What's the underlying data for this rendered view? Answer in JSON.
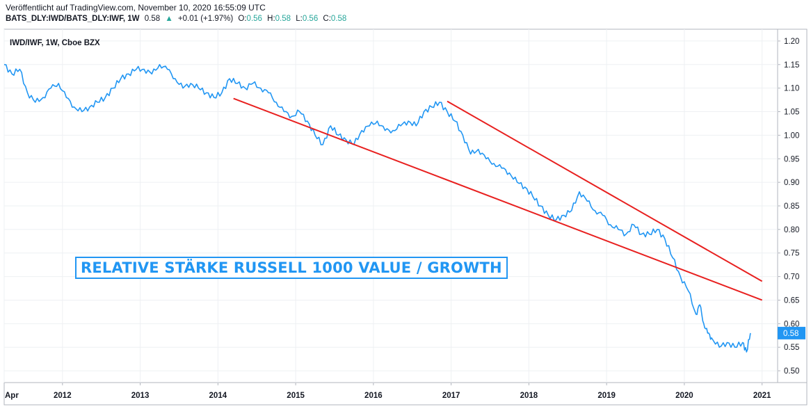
{
  "header": {
    "published": "Veröffentlicht auf TradingView.com, November 10, 2020 16:55:09 UTC",
    "symbol": "BATS_DLY:IWD/BATS_DLY:IWF, 1W",
    "last": "0.58",
    "change_arrow": "▲",
    "change": "+0.01 (+1.97%)",
    "open_label": "O:",
    "open": "0.56",
    "high_label": "H:",
    "high": "0.58",
    "low_label": "L:",
    "low": "0.56",
    "close_label": "C:",
    "close": "0.58"
  },
  "chart_data": {
    "type": "line",
    "title": "IWD/IWF, 1W, Cboe BZX",
    "annotation": "RELATIVE STÄRKE RUSSELL 1000 VALUE / GROWTH",
    "x_ticks": [
      "Apr",
      "2012",
      "2013",
      "2014",
      "2015",
      "2016",
      "2017",
      "2018",
      "2019",
      "2020",
      "2021"
    ],
    "x_tick_years": [
      2011.25,
      2012,
      2013,
      2014,
      2015,
      2016,
      2017,
      2018,
      2019,
      2020,
      2021
    ],
    "y_ticks": [
      "1.20",
      "1.15",
      "1.10",
      "1.05",
      "1.00",
      "0.95",
      "0.90",
      "0.85",
      "0.80",
      "0.75",
      "0.70",
      "0.65",
      "0.60",
      "0.55",
      "0.50"
    ],
    "ylim": [
      0.475,
      1.225
    ],
    "xlim": [
      2011.25,
      2021.2
    ],
    "last_value_label": "0.58",
    "colors": {
      "series": "#2196f3",
      "trendline": "#e8201f",
      "grid": "#eef0f3",
      "last_label_bg": "#2196f3"
    },
    "series": [
      {
        "x": [
          2011.25,
          2011.35,
          2011.45,
          2011.55,
          2011.65,
          2011.75,
          2011.85,
          2011.95,
          2012.05,
          2012.15,
          2012.25,
          2012.35,
          2012.45,
          2012.55,
          2012.65,
          2012.75,
          2012.85,
          2012.95,
          2013.05,
          2013.15,
          2013.25,
          2013.35,
          2013.45,
          2013.55,
          2013.65,
          2013.75,
          2013.85,
          2013.95,
          2014.05,
          2014.15,
          2014.25,
          2014.35,
          2014.45,
          2014.55,
          2014.65,
          2014.75,
          2014.85,
          2014.95,
          2015.05,
          2015.15,
          2015.25,
          2015.35,
          2015.45,
          2015.55,
          2015.65,
          2015.75,
          2015.85,
          2015.95,
          2016.05,
          2016.15,
          2016.25,
          2016.35,
          2016.45,
          2016.55,
          2016.65,
          2016.75,
          2016.85,
          2016.95,
          2017.05,
          2017.15,
          2017.25,
          2017.35,
          2017.45,
          2017.55,
          2017.65,
          2017.75,
          2017.85,
          2017.95,
          2018.05,
          2018.15,
          2018.25,
          2018.35,
          2018.45,
          2018.55,
          2018.65,
          2018.75,
          2018.85,
          2018.95,
          2019.05,
          2019.15,
          2019.25,
          2019.35,
          2019.45,
          2019.55,
          2019.65,
          2019.75,
          2019.85,
          2019.95,
          2020.05,
          2020.15,
          2020.2,
          2020.25,
          2020.3,
          2020.35,
          2020.45,
          2020.55,
          2020.65,
          2020.75,
          2020.8,
          2020.85
        ],
        "y": [
          1.15,
          1.13,
          1.14,
          1.09,
          1.07,
          1.08,
          1.1,
          1.11,
          1.08,
          1.06,
          1.05,
          1.06,
          1.07,
          1.08,
          1.1,
          1.12,
          1.13,
          1.14,
          1.14,
          1.13,
          1.15,
          1.14,
          1.12,
          1.1,
          1.11,
          1.1,
          1.09,
          1.08,
          1.09,
          1.12,
          1.11,
          1.1,
          1.11,
          1.1,
          1.09,
          1.07,
          1.05,
          1.04,
          1.05,
          1.03,
          1.0,
          0.98,
          1.02,
          1.0,
          0.99,
          0.98,
          1.01,
          1.02,
          1.03,
          1.01,
          1.01,
          1.02,
          1.03,
          1.02,
          1.05,
          1.06,
          1.07,
          1.05,
          1.03,
          1.0,
          0.96,
          0.97,
          0.95,
          0.94,
          0.93,
          0.92,
          0.9,
          0.89,
          0.87,
          0.85,
          0.83,
          0.82,
          0.83,
          0.84,
          0.88,
          0.86,
          0.84,
          0.83,
          0.81,
          0.8,
          0.79,
          0.81,
          0.79,
          0.79,
          0.8,
          0.78,
          0.74,
          0.7,
          0.67,
          0.62,
          0.64,
          0.6,
          0.58,
          0.57,
          0.55,
          0.56,
          0.55,
          0.56,
          0.54,
          0.58
        ]
      }
    ],
    "trendlines": [
      {
        "x": [
          2014.2,
          2021.0
        ],
        "y": [
          1.078,
          0.65
        ]
      },
      {
        "x": [
          2016.95,
          2021.0
        ],
        "y": [
          1.072,
          0.69
        ]
      }
    ]
  }
}
